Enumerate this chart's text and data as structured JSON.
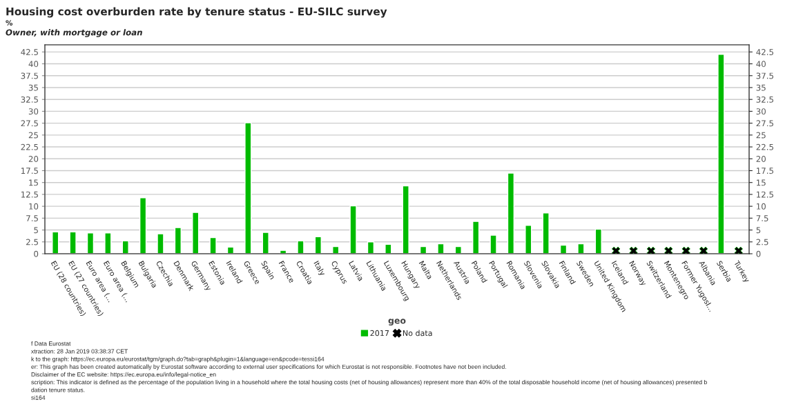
{
  "chart_data": {
    "type": "bar",
    "title": "Housing cost overburden rate by tenure status - EU-SILC survey",
    "subtitle": "Owner, with mortgage or loan",
    "ylabel": "%",
    "xlabel": "geo",
    "categories": [
      "EU (28 countries)",
      "EU (27 countries)",
      "Euro area (...",
      "Euro area (...",
      "Belgium",
      "Bulgaria",
      "Czechia",
      "Denmark",
      "Germany",
      "Estonia",
      "Ireland",
      "Greece",
      "Spain",
      "France",
      "Croatia",
      "Italy",
      "Cyprus",
      "Latvia",
      "Lithuania",
      "Luxembourg",
      "Hungary",
      "Malta",
      "Netherlands",
      "Austria",
      "Poland",
      "Portugal",
      "Romania",
      "Slovenia",
      "Slovakia",
      "Finland",
      "Sweden",
      "United Kingdom",
      "Iceland",
      "Norway",
      "Switzerland",
      "Montenegro",
      "Former Yugosl...",
      "Albania",
      "Serbia",
      "Turkey"
    ],
    "series": [
      {
        "name": "2017",
        "color": "#00bb00",
        "values": [
          4.6,
          4.6,
          4.4,
          4.4,
          2.7,
          11.8,
          4.2,
          5.5,
          8.7,
          3.4,
          1.4,
          27.6,
          4.5,
          0.7,
          2.7,
          3.6,
          1.5,
          10.1,
          2.5,
          2.0,
          14.3,
          1.5,
          2.1,
          1.5,
          6.8,
          3.9,
          17.0,
          6.0,
          8.6,
          1.8,
          2.1,
          5.2,
          null,
          null,
          null,
          null,
          null,
          null,
          42.0,
          null
        ]
      },
      {
        "name": "No data",
        "type": "scatter",
        "marker": "cross",
        "color": "#000000",
        "values": [
          null,
          null,
          null,
          null,
          null,
          null,
          null,
          null,
          null,
          null,
          null,
          null,
          null,
          null,
          null,
          null,
          null,
          null,
          null,
          null,
          null,
          null,
          null,
          null,
          null,
          null,
          null,
          null,
          null,
          null,
          null,
          null,
          0.6,
          0.6,
          0.6,
          0.6,
          0.6,
          0.6,
          null,
          0.6
        ]
      }
    ],
    "ylim": [
      0,
      44
    ],
    "yticks": [
      0,
      2.5,
      5,
      7.5,
      10,
      12.5,
      15,
      17.5,
      20,
      22.5,
      25,
      27.5,
      30,
      32.5,
      35,
      37.5,
      40,
      42.5
    ],
    "y2lim": [
      0,
      44
    ],
    "y2ticks": [
      0,
      2.5,
      5,
      7.5,
      10,
      12.5,
      15,
      17.5,
      20,
      22.5,
      25,
      27.5,
      30,
      32.5,
      35,
      37.5,
      40,
      42.5
    ],
    "grid": "y",
    "legend": "bottom",
    "annotations": [
      "f Data Eurostat",
      "xtraction: 28 Jan 2019 03:38:37 CET",
      "k to the graph: https://ec.europa.eu/eurostat/tgm/graph.do?tab=graph&plugin=1&language=en&pcode=tessi164",
      "er: This graph has been created automatically by Eurostat software according to external user specifications for which Eurostat is not responsible. Footnotes have not been included.",
      "Disclaimer of the EC website: https://ec.europa.eu/info/legal-notice_en",
      "scription: This indicator is defined as the percentage of the population living in a household where the total housing costs (net of housing allowances) represent more than 40% of the total disposable household income (net of housing allowances) presented b",
      "dation tenure status.",
      "si164"
    ]
  }
}
